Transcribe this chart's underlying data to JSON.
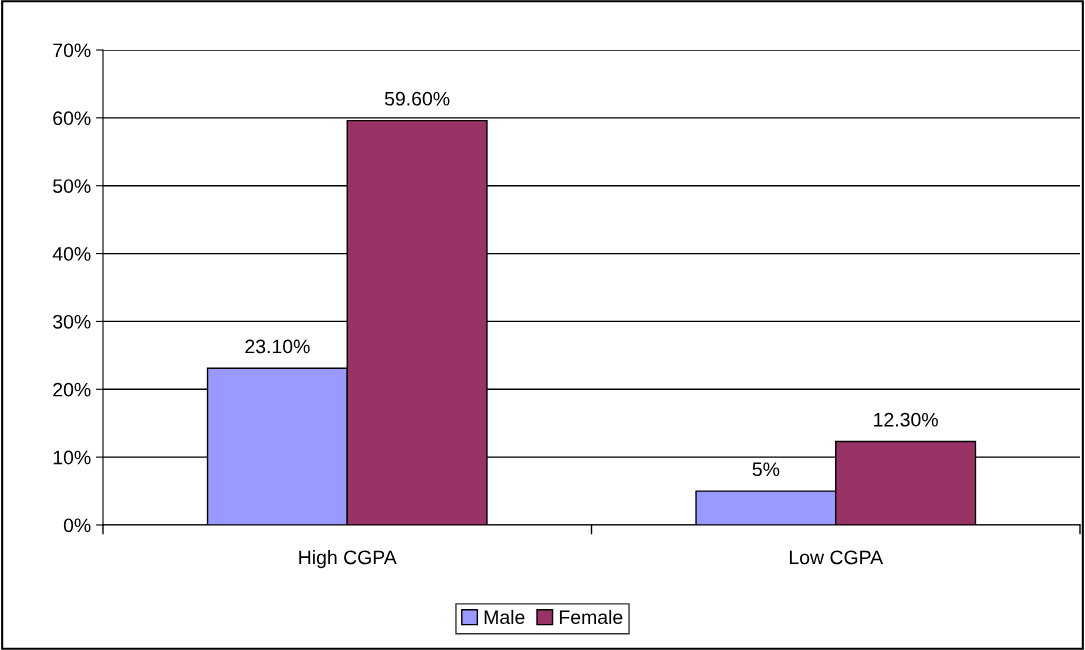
{
  "chart_data": {
    "type": "bar",
    "categories": [
      "High CGPA",
      "Low CGPA"
    ],
    "series": [
      {
        "name": "Male",
        "color": "#9999ff",
        "values": [
          23.1,
          5
        ],
        "value_labels": [
          "23.10%",
          "5%"
        ]
      },
      {
        "name": "Female",
        "color": "#993366",
        "values": [
          59.6,
          12.3
        ],
        "value_labels": [
          "59.60%",
          "12.30%"
        ]
      }
    ],
    "ylim": [
      0,
      70
    ],
    "yticks": [
      {
        "value": 0,
        "label": "0%"
      },
      {
        "value": 10,
        "label": "10%"
      },
      {
        "value": 20,
        "label": "20%"
      },
      {
        "value": 30,
        "label": "30%"
      },
      {
        "value": 40,
        "label": "40%"
      },
      {
        "value": 50,
        "label": "50%"
      },
      {
        "value": 60,
        "label": "60%"
      },
      {
        "value": 70,
        "label": "70%"
      }
    ],
    "grid": "y",
    "legend": "bottom"
  }
}
